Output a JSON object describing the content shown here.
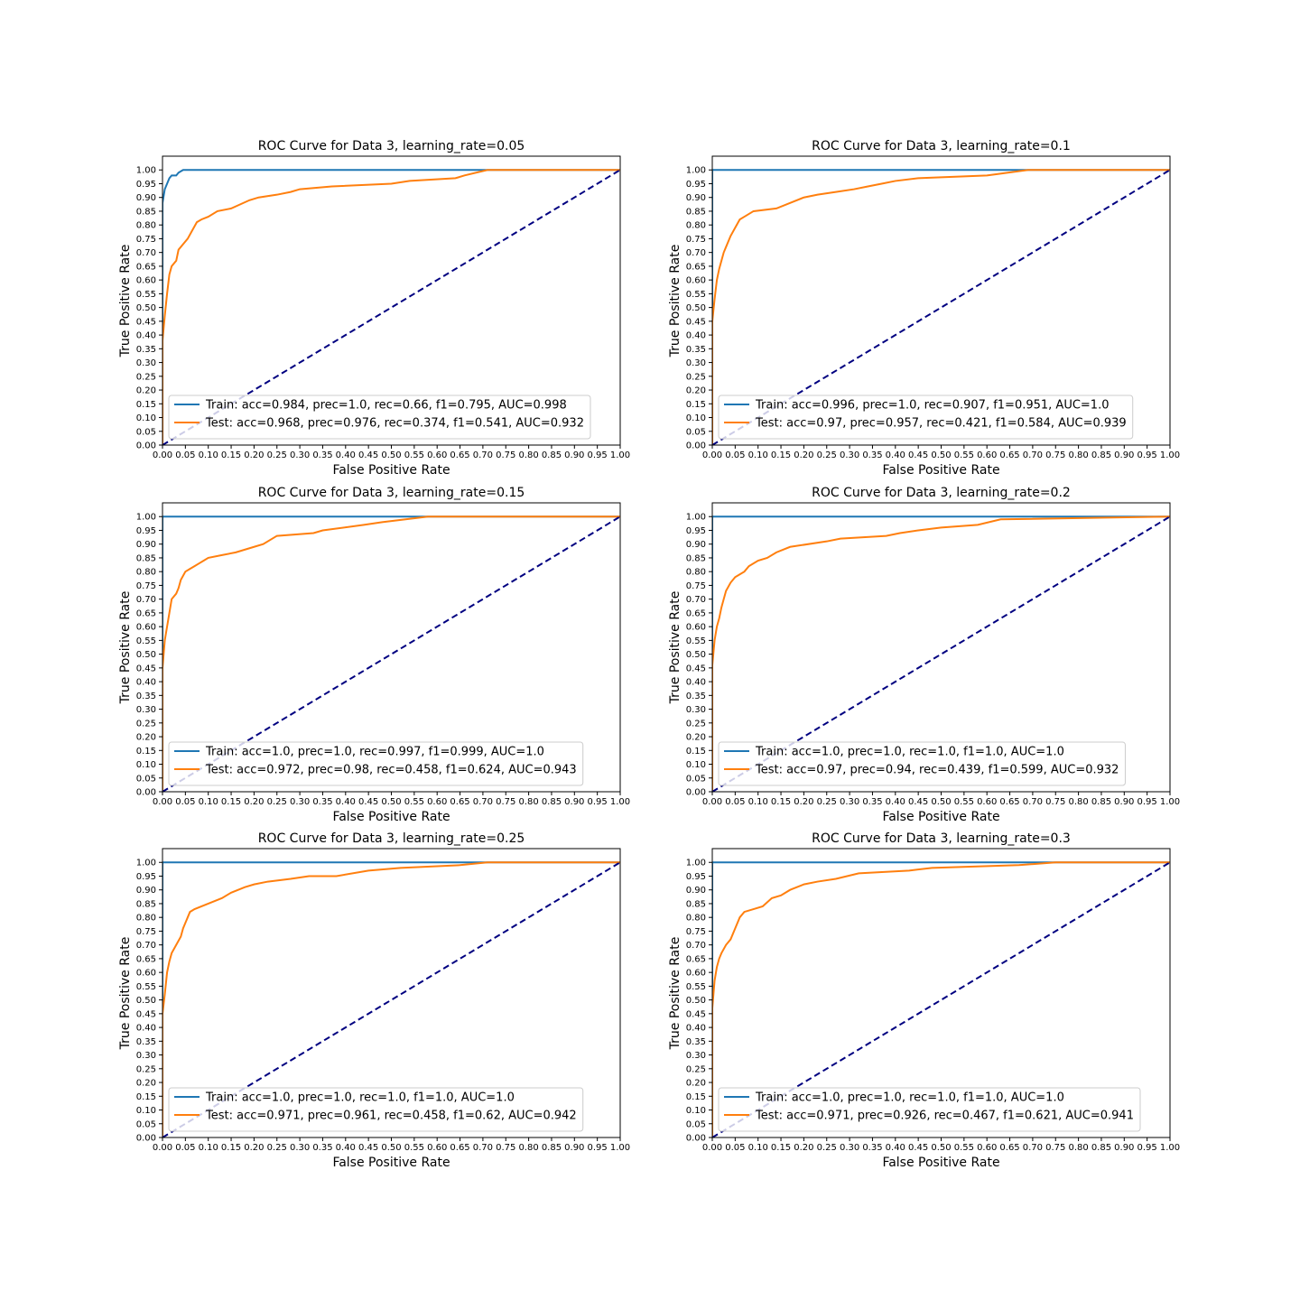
{
  "colors": {
    "train": "#1f77b4",
    "test": "#ff7f0e",
    "diagonal": "#000080",
    "legend_border": "#cccccc"
  },
  "chart_data": [
    {
      "type": "line",
      "title": "ROC Curve for Data 3, learning_rate=0.05",
      "xlabel": "False Positive Rate",
      "ylabel": "True Positive Rate",
      "xlim": [
        0,
        1
      ],
      "ylim": [
        0,
        1.05
      ],
      "xticks": [
        "0.00",
        "0.05",
        "0.10",
        "0.15",
        "0.20",
        "0.25",
        "0.30",
        "0.35",
        "0.40",
        "0.45",
        "0.50",
        "0.55",
        "0.60",
        "0.65",
        "0.70",
        "0.75",
        "0.80",
        "0.85",
        "0.90",
        "0.95",
        "1.00"
      ],
      "yticks": [
        "0.00",
        "0.05",
        "0.10",
        "0.15",
        "0.20",
        "0.25",
        "0.30",
        "0.35",
        "0.40",
        "0.45",
        "0.50",
        "0.55",
        "0.60",
        "0.65",
        "0.70",
        "0.75",
        "0.80",
        "0.85",
        "0.90",
        "0.95",
        "1.00"
      ],
      "legend": "lower-left",
      "grid": false,
      "series": [
        {
          "name": "Train: acc=0.984, prec=1.0, rec=0.66, f1=0.795, AUC=0.998",
          "color": "#1f77b4",
          "x": [
            0,
            0,
            0.005,
            0.01,
            0.015,
            0.02,
            0.03,
            0.035,
            0.045,
            0.06,
            0.11,
            0.5,
            1.0
          ],
          "y": [
            0,
            0.88,
            0.93,
            0.95,
            0.97,
            0.98,
            0.98,
            0.99,
            1.0,
            1.0,
            1.0,
            1.0,
            1.0
          ]
        },
        {
          "name": "Test: acc=0.968, prec=0.976, rec=0.374, f1=0.541, AUC=0.932",
          "color": "#ff7f0e",
          "x": [
            0,
            0,
            0.005,
            0.01,
            0.015,
            0.02,
            0.03,
            0.035,
            0.045,
            0.055,
            0.065,
            0.075,
            0.085,
            0.1,
            0.12,
            0.15,
            0.19,
            0.21,
            0.25,
            0.28,
            0.3,
            0.37,
            0.5,
            0.54,
            0.64,
            0.66,
            0.71,
            1.0
          ],
          "y": [
            0,
            0.38,
            0.47,
            0.55,
            0.62,
            0.65,
            0.67,
            0.71,
            0.73,
            0.75,
            0.78,
            0.81,
            0.82,
            0.83,
            0.85,
            0.86,
            0.89,
            0.9,
            0.91,
            0.92,
            0.93,
            0.94,
            0.95,
            0.96,
            0.97,
            0.98,
            1.0,
            1.0
          ]
        },
        {
          "name": "",
          "color": "#000080",
          "dashed": true,
          "x": [
            0,
            1
          ],
          "y": [
            0,
            1
          ]
        }
      ]
    },
    {
      "type": "line",
      "title": "ROC Curve for Data 3, learning_rate=0.1",
      "xlabel": "False Positive Rate",
      "ylabel": "True Positive Rate",
      "xlim": [
        0,
        1
      ],
      "ylim": [
        0,
        1.05
      ],
      "xticks": [
        "0.00",
        "0.05",
        "0.10",
        "0.15",
        "0.20",
        "0.25",
        "0.30",
        "0.35",
        "0.40",
        "0.45",
        "0.50",
        "0.55",
        "0.60",
        "0.65",
        "0.70",
        "0.75",
        "0.80",
        "0.85",
        "0.90",
        "0.95",
        "1.00"
      ],
      "yticks": [
        "0.00",
        "0.05",
        "0.10",
        "0.15",
        "0.20",
        "0.25",
        "0.30",
        "0.35",
        "0.40",
        "0.45",
        "0.50",
        "0.55",
        "0.60",
        "0.65",
        "0.70",
        "0.75",
        "0.80",
        "0.85",
        "0.90",
        "0.95",
        "1.00"
      ],
      "legend": "lower-left",
      "grid": false,
      "series": [
        {
          "name": "Train: acc=0.996, prec=1.0, rec=0.907, f1=0.951, AUC=1.0",
          "color": "#1f77b4",
          "x": [
            0,
            0,
            1.0
          ],
          "y": [
            0,
            1.0,
            1.0
          ]
        },
        {
          "name": "Test: acc=0.97, prec=0.957, rec=0.421, f1=0.584, AUC=0.939",
          "color": "#ff7f0e",
          "x": [
            0,
            0,
            0.005,
            0.01,
            0.015,
            0.02,
            0.025,
            0.03,
            0.04,
            0.05,
            0.06,
            0.07,
            0.09,
            0.14,
            0.17,
            0.2,
            0.23,
            0.27,
            0.31,
            0.34,
            0.37,
            0.4,
            0.45,
            0.6,
            0.69,
            1.0
          ],
          "y": [
            0,
            0.45,
            0.53,
            0.6,
            0.64,
            0.67,
            0.7,
            0.72,
            0.76,
            0.79,
            0.82,
            0.83,
            0.85,
            0.86,
            0.88,
            0.9,
            0.91,
            0.92,
            0.93,
            0.94,
            0.95,
            0.96,
            0.97,
            0.98,
            1.0,
            1.0
          ]
        },
        {
          "name": "",
          "color": "#000080",
          "dashed": true,
          "x": [
            0,
            1
          ],
          "y": [
            0,
            1
          ]
        }
      ]
    },
    {
      "type": "line",
      "title": "ROC Curve for Data 3, learning_rate=0.15",
      "xlabel": "False Positive Rate",
      "ylabel": "True Positive Rate",
      "xlim": [
        0,
        1
      ],
      "ylim": [
        0,
        1.05
      ],
      "xticks": [
        "0.00",
        "0.05",
        "0.10",
        "0.15",
        "0.20",
        "0.25",
        "0.30",
        "0.35",
        "0.40",
        "0.45",
        "0.50",
        "0.55",
        "0.60",
        "0.65",
        "0.70",
        "0.75",
        "0.80",
        "0.85",
        "0.90",
        "0.95",
        "1.00"
      ],
      "yticks": [
        "0.00",
        "0.05",
        "0.10",
        "0.15",
        "0.20",
        "0.25",
        "0.30",
        "0.35",
        "0.40",
        "0.45",
        "0.50",
        "0.55",
        "0.60",
        "0.65",
        "0.70",
        "0.75",
        "0.80",
        "0.85",
        "0.90",
        "0.95",
        "1.00"
      ],
      "legend": "lower-left",
      "grid": false,
      "series": [
        {
          "name": "Train: acc=1.0, prec=1.0, rec=0.997, f1=0.999, AUC=1.0",
          "color": "#1f77b4",
          "x": [
            0,
            0,
            1.0
          ],
          "y": [
            0,
            1.0,
            1.0
          ]
        },
        {
          "name": "Test: acc=0.972, prec=0.98, rec=0.458, f1=0.624, AUC=0.943",
          "color": "#ff7f0e",
          "x": [
            0,
            0,
            0.005,
            0.01,
            0.015,
            0.02,
            0.03,
            0.035,
            0.04,
            0.05,
            0.06,
            0.07,
            0.08,
            0.09,
            0.1,
            0.13,
            0.16,
            0.2,
            0.22,
            0.25,
            0.33,
            0.35,
            0.44,
            0.48,
            0.58,
            1.0
          ],
          "y": [
            0,
            0.45,
            0.55,
            0.6,
            0.65,
            0.7,
            0.72,
            0.74,
            0.77,
            0.8,
            0.81,
            0.82,
            0.83,
            0.84,
            0.85,
            0.86,
            0.87,
            0.89,
            0.9,
            0.93,
            0.94,
            0.95,
            0.97,
            0.98,
            1.0,
            1.0
          ]
        },
        {
          "name": "",
          "color": "#000080",
          "dashed": true,
          "x": [
            0,
            1
          ],
          "y": [
            0,
            1
          ]
        }
      ]
    },
    {
      "type": "line",
      "title": "ROC Curve for Data 3, learning_rate=0.2",
      "xlabel": "False Positive Rate",
      "ylabel": "True Positive Rate",
      "xlim": [
        0,
        1
      ],
      "ylim": [
        0,
        1.05
      ],
      "xticks": [
        "0.00",
        "0.05",
        "0.10",
        "0.15",
        "0.20",
        "0.25",
        "0.30",
        "0.35",
        "0.40",
        "0.45",
        "0.50",
        "0.55",
        "0.60",
        "0.65",
        "0.70",
        "0.75",
        "0.80",
        "0.85",
        "0.90",
        "0.95",
        "1.00"
      ],
      "yticks": [
        "0.00",
        "0.05",
        "0.10",
        "0.15",
        "0.20",
        "0.25",
        "0.30",
        "0.35",
        "0.40",
        "0.45",
        "0.50",
        "0.55",
        "0.60",
        "0.65",
        "0.70",
        "0.75",
        "0.80",
        "0.85",
        "0.90",
        "0.95",
        "1.00"
      ],
      "legend": "lower-left",
      "grid": false,
      "series": [
        {
          "name": "Train: acc=1.0, prec=1.0, rec=1.0, f1=1.0, AUC=1.0",
          "color": "#1f77b4",
          "x": [
            0,
            0,
            1.0
          ],
          "y": [
            0,
            1.0,
            1.0
          ]
        },
        {
          "name": "Test: acc=0.97, prec=0.94, rec=0.439, f1=0.599, AUC=0.932",
          "color": "#ff7f0e",
          "x": [
            0,
            0,
            0.005,
            0.01,
            0.015,
            0.02,
            0.025,
            0.03,
            0.04,
            0.05,
            0.06,
            0.07,
            0.08,
            0.1,
            0.12,
            0.14,
            0.17,
            0.25,
            0.28,
            0.38,
            0.41,
            0.45,
            0.5,
            0.58,
            0.63,
            1.0
          ],
          "y": [
            0,
            0.46,
            0.55,
            0.6,
            0.63,
            0.67,
            0.7,
            0.73,
            0.76,
            0.78,
            0.79,
            0.8,
            0.82,
            0.84,
            0.85,
            0.87,
            0.89,
            0.91,
            0.92,
            0.93,
            0.94,
            0.95,
            0.96,
            0.97,
            0.99,
            1.0
          ]
        },
        {
          "name": "",
          "color": "#000080",
          "dashed": true,
          "x": [
            0,
            1
          ],
          "y": [
            0,
            1
          ]
        }
      ]
    },
    {
      "type": "line",
      "title": "ROC Curve for Data 3, learning_rate=0.25",
      "xlabel": "False Positive Rate",
      "ylabel": "True Positive Rate",
      "xlim": [
        0,
        1
      ],
      "ylim": [
        0,
        1.05
      ],
      "xticks": [
        "0.00",
        "0.05",
        "0.10",
        "0.15",
        "0.20",
        "0.25",
        "0.30",
        "0.35",
        "0.40",
        "0.45",
        "0.50",
        "0.55",
        "0.60",
        "0.65",
        "0.70",
        "0.75",
        "0.80",
        "0.85",
        "0.90",
        "0.95",
        "1.00"
      ],
      "yticks": [
        "0.00",
        "0.05",
        "0.10",
        "0.15",
        "0.20",
        "0.25",
        "0.30",
        "0.35",
        "0.40",
        "0.45",
        "0.50",
        "0.55",
        "0.60",
        "0.65",
        "0.70",
        "0.75",
        "0.80",
        "0.85",
        "0.90",
        "0.95",
        "1.00"
      ],
      "legend": "lower-left",
      "grid": false,
      "series": [
        {
          "name": "Train: acc=1.0, prec=1.0, rec=1.0, f1=1.0, AUC=1.0",
          "color": "#1f77b4",
          "x": [
            0,
            0,
            1.0
          ],
          "y": [
            0,
            1.0,
            1.0
          ]
        },
        {
          "name": "Test: acc=0.971, prec=0.961, rec=0.458, f1=0.62, AUC=0.942",
          "color": "#ff7f0e",
          "x": [
            0,
            0,
            0.005,
            0.01,
            0.015,
            0.02,
            0.03,
            0.04,
            0.045,
            0.05,
            0.055,
            0.06,
            0.07,
            0.1,
            0.13,
            0.15,
            0.18,
            0.2,
            0.23,
            0.28,
            0.32,
            0.38,
            0.45,
            0.52,
            0.65,
            0.71,
            1.0
          ],
          "y": [
            0,
            0.45,
            0.52,
            0.6,
            0.64,
            0.67,
            0.7,
            0.73,
            0.76,
            0.78,
            0.8,
            0.82,
            0.83,
            0.85,
            0.87,
            0.89,
            0.91,
            0.92,
            0.93,
            0.94,
            0.95,
            0.95,
            0.97,
            0.98,
            0.99,
            1.0,
            1.0
          ]
        },
        {
          "name": "",
          "color": "#000080",
          "dashed": true,
          "x": [
            0,
            1
          ],
          "y": [
            0,
            1
          ]
        }
      ]
    },
    {
      "type": "line",
      "title": "ROC Curve for Data 3, learning_rate=0.3",
      "xlabel": "False Positive Rate",
      "ylabel": "True Positive Rate",
      "xlim": [
        0,
        1
      ],
      "ylim": [
        0,
        1.05
      ],
      "xticks": [
        "0.00",
        "0.05",
        "0.10",
        "0.15",
        "0.20",
        "0.25",
        "0.30",
        "0.35",
        "0.40",
        "0.45",
        "0.50",
        "0.55",
        "0.60",
        "0.65",
        "0.70",
        "0.75",
        "0.80",
        "0.85",
        "0.90",
        "0.95",
        "1.00"
      ],
      "yticks": [
        "0.00",
        "0.05",
        "0.10",
        "0.15",
        "0.20",
        "0.25",
        "0.30",
        "0.35",
        "0.40",
        "0.45",
        "0.50",
        "0.55",
        "0.60",
        "0.65",
        "0.70",
        "0.75",
        "0.80",
        "0.85",
        "0.90",
        "0.95",
        "1.00"
      ],
      "legend": "lower-left",
      "grid": false,
      "series": [
        {
          "name": "Train: acc=1.0, prec=1.0, rec=1.0, f1=1.0, AUC=1.0",
          "color": "#1f77b4",
          "x": [
            0,
            0,
            1.0
          ],
          "y": [
            0,
            1.0,
            1.0
          ]
        },
        {
          "name": "Test: acc=0.971, prec=0.926, rec=0.467, f1=0.621, AUC=0.941",
          "color": "#ff7f0e",
          "x": [
            0,
            0,
            0.005,
            0.01,
            0.015,
            0.02,
            0.03,
            0.04,
            0.05,
            0.06,
            0.07,
            0.09,
            0.11,
            0.13,
            0.15,
            0.17,
            0.2,
            0.23,
            0.27,
            0.32,
            0.43,
            0.48,
            0.67,
            0.75,
            1.0
          ],
          "y": [
            0,
            0.47,
            0.57,
            0.62,
            0.65,
            0.67,
            0.7,
            0.72,
            0.76,
            0.8,
            0.82,
            0.83,
            0.84,
            0.87,
            0.88,
            0.9,
            0.92,
            0.93,
            0.94,
            0.96,
            0.97,
            0.98,
            0.99,
            1.0,
            1.0
          ]
        },
        {
          "name": "",
          "color": "#000080",
          "dashed": true,
          "x": [
            0,
            1
          ],
          "y": [
            0,
            1
          ]
        }
      ]
    }
  ]
}
